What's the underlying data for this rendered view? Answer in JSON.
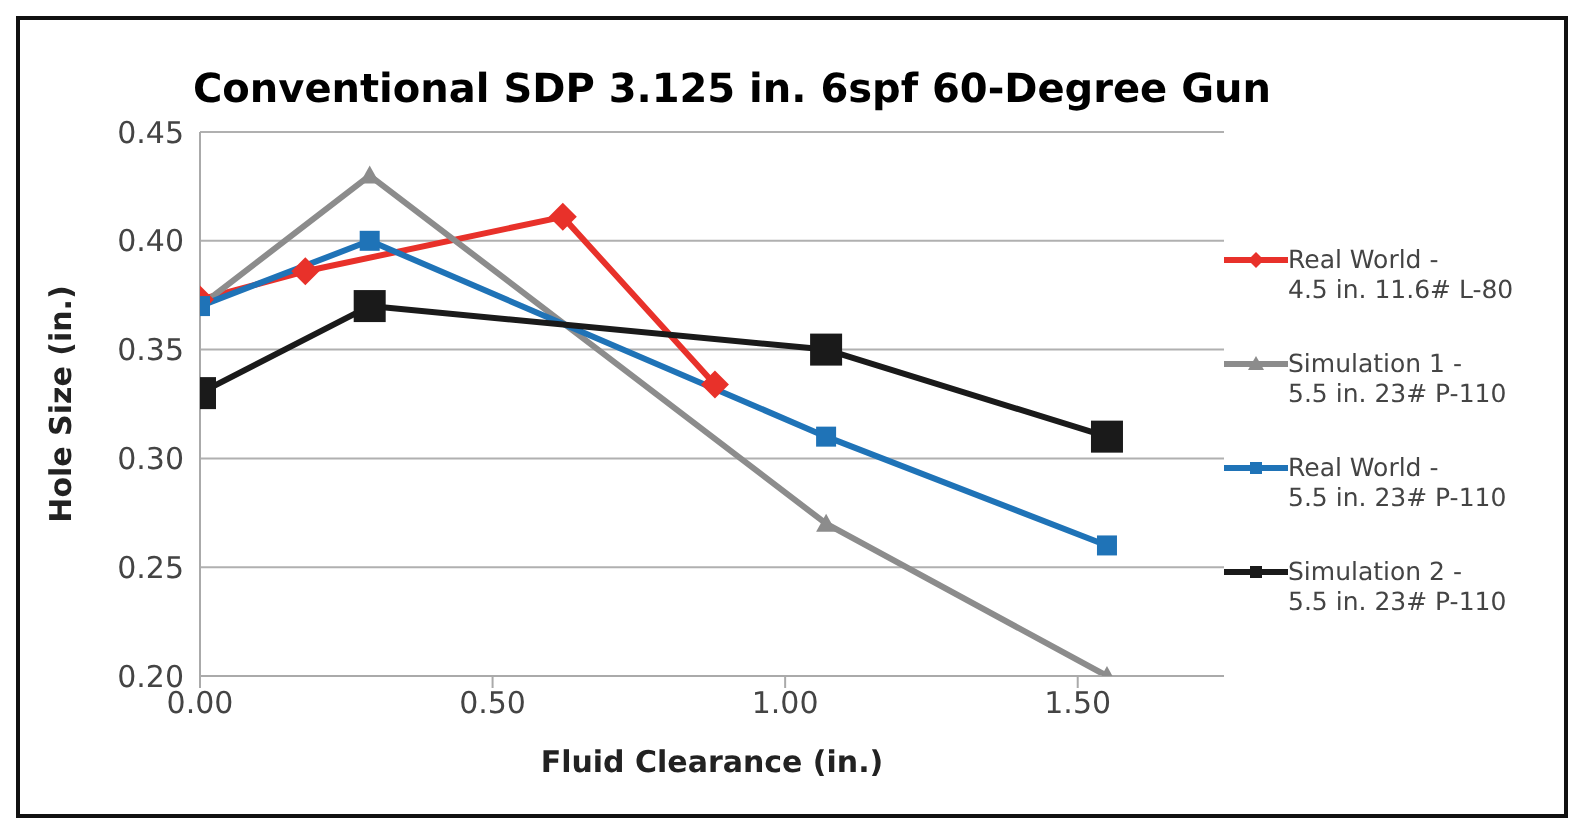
{
  "chart_data": {
    "type": "line",
    "title": "Conventional SDP 3.125 in. 6spf 60-Degree Gun",
    "xlabel": "Fluid Clearance (in.)",
    "ylabel": "Hole Size (in.)",
    "xlim": [
      0,
      1.75
    ],
    "xticks": [
      {
        "value": 0,
        "label": "0.00"
      },
      {
        "value": 0.5,
        "label": "0.50"
      },
      {
        "value": 1,
        "label": "1.00"
      },
      {
        "value": 1.5,
        "label": "1.50"
      }
    ],
    "ylim": [
      0.2,
      0.45
    ],
    "yticks": [
      {
        "value": 0.2,
        "label": "0.20"
      },
      {
        "value": 0.25,
        "label": "0.25"
      },
      {
        "value": 0.3,
        "label": "0.30"
      },
      {
        "value": 0.35,
        "label": "0.35"
      },
      {
        "value": 0.4,
        "label": "0.40"
      },
      {
        "value": 0.45,
        "label": "0.45"
      }
    ],
    "grid": "y",
    "legend": "right",
    "series": [
      {
        "name": "Real World - 4.5 in. 11.6# L-80",
        "color": "#e8312a",
        "marker": "diamond",
        "x": [
          0,
          0.18,
          0.62,
          0.88
        ],
        "values": [
          0.373,
          0.386,
          0.411,
          0.334
        ]
      },
      {
        "name": "Simulation 1 - 5.5 in. 23# P-110",
        "color": "#8c8c8c",
        "marker": "triangle",
        "x": [
          0,
          0.29,
          1.07,
          1.55
        ],
        "values": [
          0.37,
          0.43,
          0.27,
          0.2
        ]
      },
      {
        "name": "Real World - 5.5 in. 23# P-110",
        "color": "#1f73b7",
        "marker": "square",
        "x": [
          0,
          0.29,
          1.07,
          1.55
        ],
        "values": [
          0.37,
          0.4,
          0.31,
          0.26
        ]
      },
      {
        "name": "Simulation 2 - 5.5 in. 23# P-110",
        "color": "#1a1a1a",
        "marker": "square",
        "x": [
          0,
          0.29,
          1.07,
          1.55
        ],
        "values": [
          0.33,
          0.37,
          0.35,
          0.31
        ]
      }
    ]
  }
}
